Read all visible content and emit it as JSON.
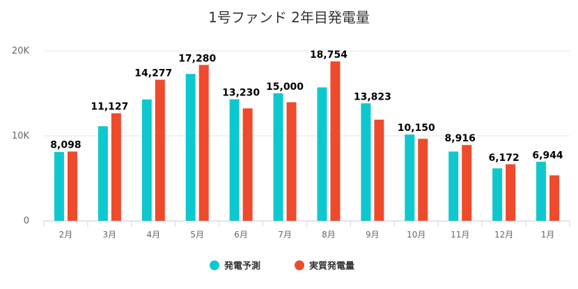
{
  "chart_data": {
    "type": "bar",
    "title": "1号ファンド 2年目発電量",
    "categories": [
      "2月",
      "3月",
      "4月",
      "5月",
      "6月",
      "7月",
      "8月",
      "9月",
      "10月",
      "11月",
      "12月",
      "1月"
    ],
    "series": [
      {
        "name": "発電予測",
        "color": "#0ec8d0",
        "values": [
          8098,
          11127,
          14277,
          17280,
          14300,
          15000,
          15700,
          13823,
          10150,
          8150,
          6172,
          6944
        ]
      },
      {
        "name": "実質発電量",
        "color": "#ef4a2c",
        "values": [
          8150,
          12650,
          16600,
          18339,
          13230,
          13950,
          18754,
          11902,
          9650,
          8916,
          6650,
          5350
        ]
      }
    ],
    "data_labels": [
      "8,098",
      "11,127",
      "14,277",
      "17,280",
      "13,230",
      "15,000",
      "18,754",
      "13,823",
      "10,150",
      "8,916",
      "6,172",
      "6,944"
    ],
    "y_ticks": [
      "0",
      "10K",
      "20K"
    ],
    "ylim": [
      0,
      20000
    ],
    "legend_placement": "bottom-center"
  }
}
